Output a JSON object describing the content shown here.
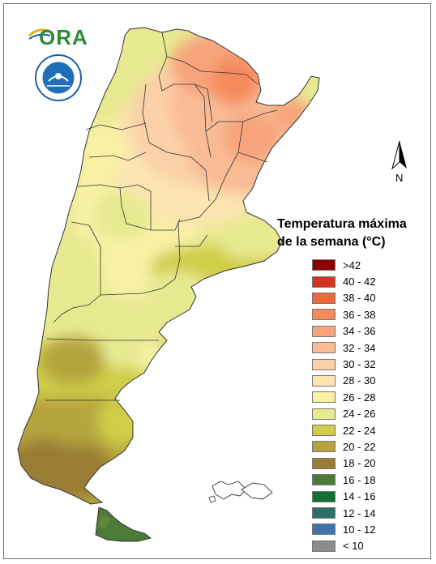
{
  "logo": {
    "text": "ORA"
  },
  "seal": {
    "icon": "smn-seal-icon"
  },
  "compass": {
    "label": "N"
  },
  "legend": {
    "title_line1": "Temperatura máxima",
    "title_line2": "de la semana (°C)",
    "items": [
      {
        "label": ">42",
        "color": "#8b0000"
      },
      {
        "label": "40 - 42",
        "color": "#d2341f"
      },
      {
        "label": "38 - 40",
        "color": "#ef6a3a"
      },
      {
        "label": "36 - 38",
        "color": "#f58a5c"
      },
      {
        "label": "34 - 36",
        "color": "#f7a47c"
      },
      {
        "label": "32 - 34",
        "color": "#f9bb95"
      },
      {
        "label": "30 - 32",
        "color": "#fbd0a8"
      },
      {
        "label": "28 - 30",
        "color": "#fde4b1"
      },
      {
        "label": "26 - 28",
        "color": "#f8f1a4"
      },
      {
        "label": "24 - 26",
        "color": "#e7e991"
      },
      {
        "label": "22 - 24",
        "color": "#cfcd4a"
      },
      {
        "label": "20 - 22",
        "color": "#b5a43d"
      },
      {
        "label": "18 - 20",
        "color": "#9a7d35"
      },
      {
        "label": "16 - 18",
        "color": "#4e7a39"
      },
      {
        "label": "14 - 16",
        "color": "#12712f"
      },
      {
        "label": "12 - 14",
        "color": "#2f6f6a"
      },
      {
        "label": "10 - 12",
        "color": "#3e74aa"
      },
      {
        "label": "< 10",
        "color": "#8c8c8c"
      }
    ]
  }
}
